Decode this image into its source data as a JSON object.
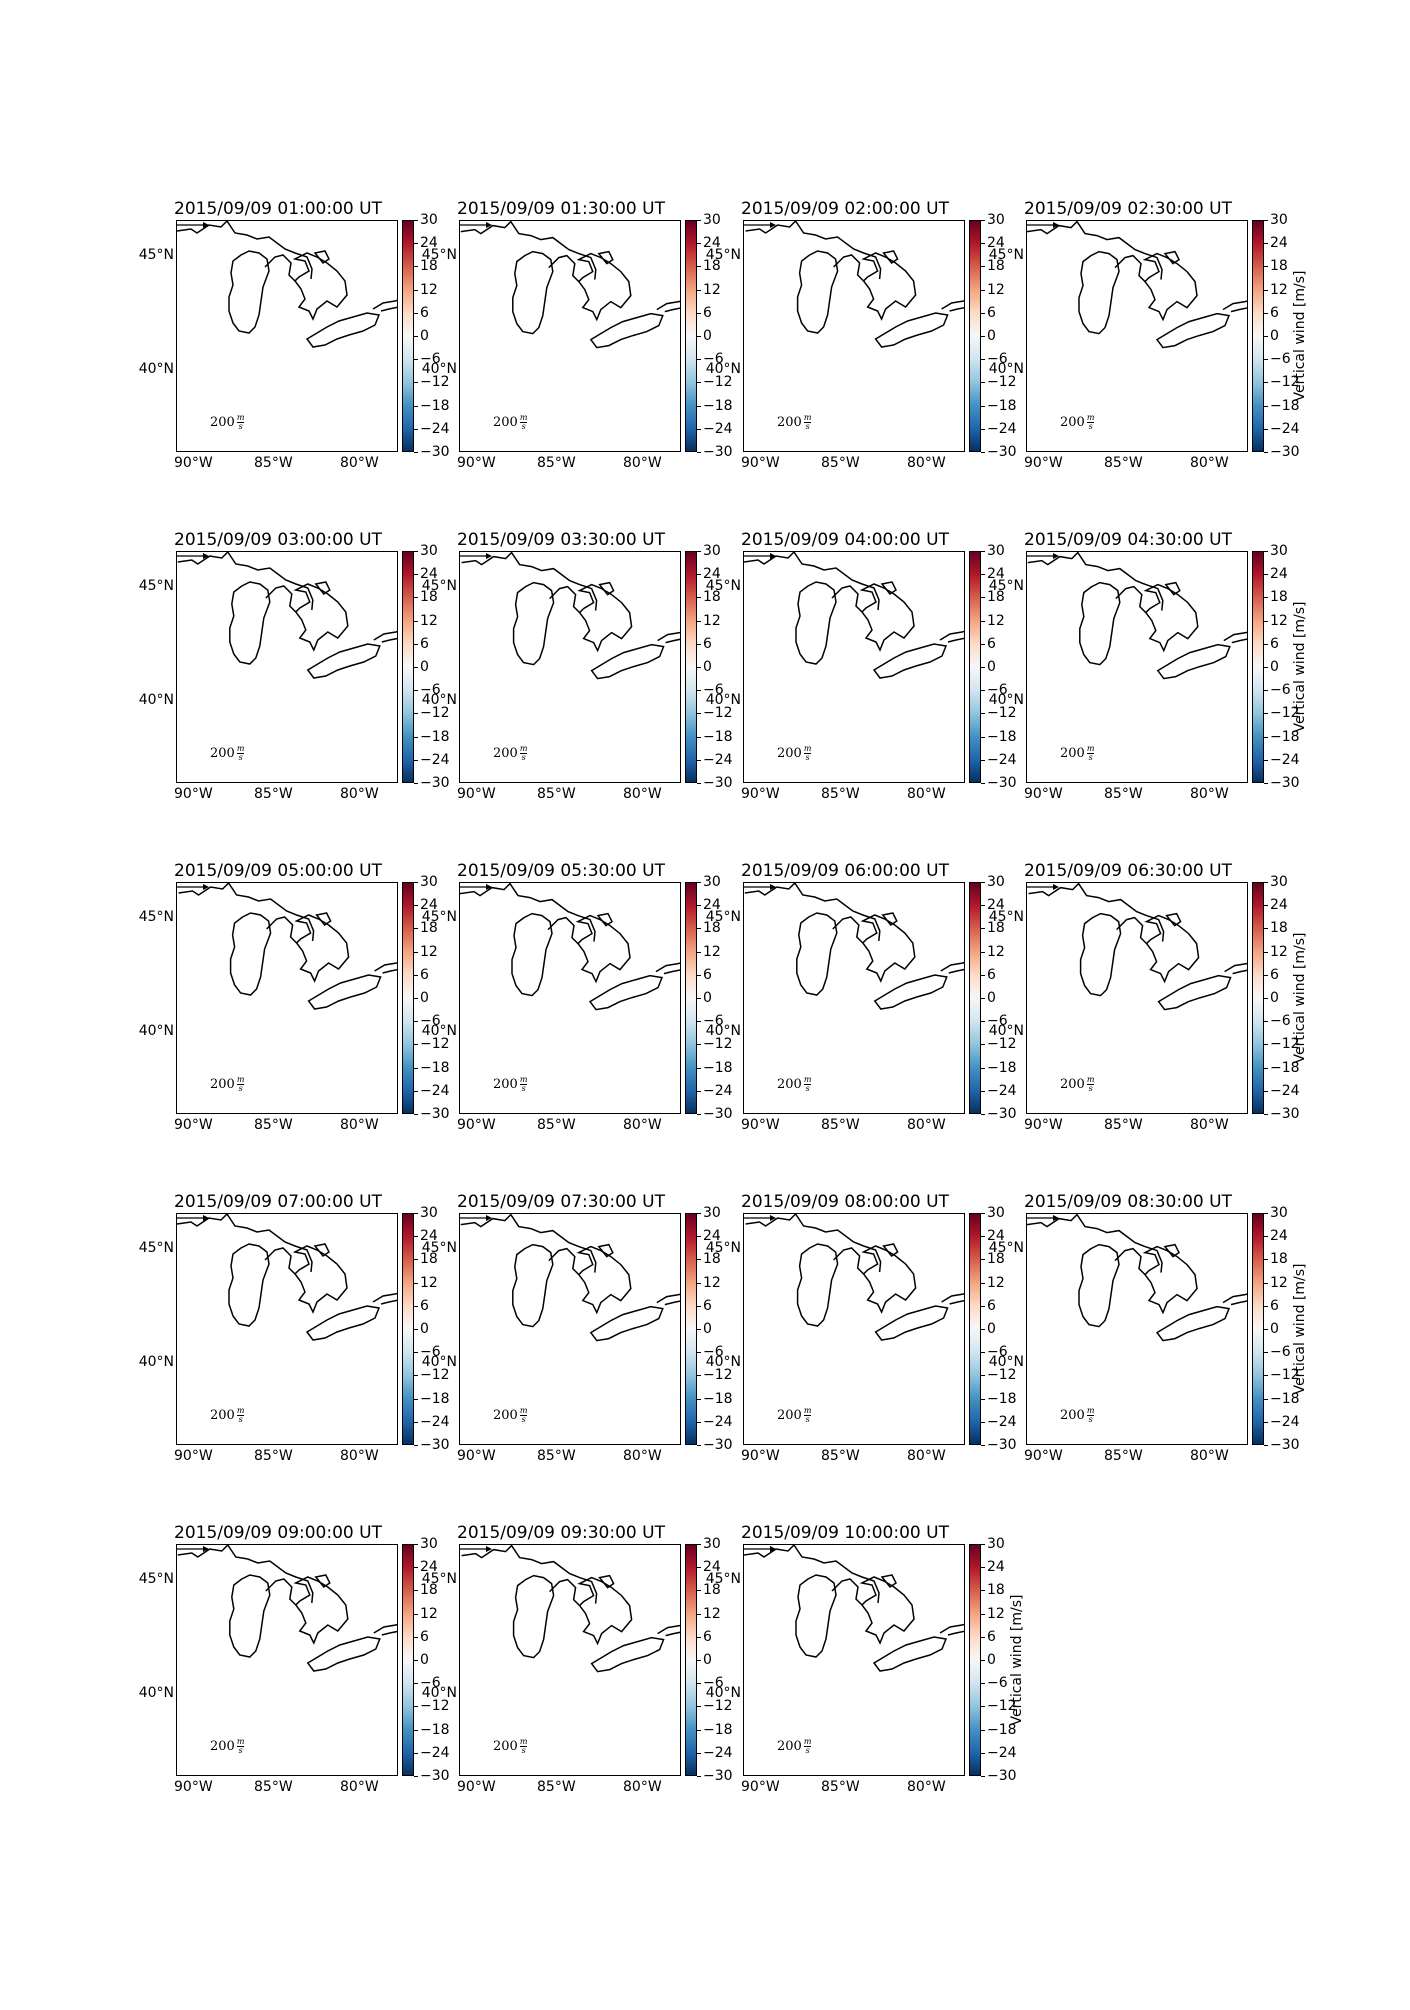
{
  "panels": [
    {
      "title": "2015/09/09 01:00:00 UT"
    },
    {
      "title": "2015/09/09 01:30:00 UT"
    },
    {
      "title": "2015/09/09 02:00:00 UT"
    },
    {
      "title": "2015/09/09 02:30:00 UT"
    },
    {
      "title": "2015/09/09 03:00:00 UT"
    },
    {
      "title": "2015/09/09 03:30:00 UT"
    },
    {
      "title": "2015/09/09 04:00:00 UT"
    },
    {
      "title": "2015/09/09 04:30:00 UT"
    },
    {
      "title": "2015/09/09 05:00:00 UT"
    },
    {
      "title": "2015/09/09 05:30:00 UT"
    },
    {
      "title": "2015/09/09 06:00:00 UT"
    },
    {
      "title": "2015/09/09 06:30:00 UT"
    },
    {
      "title": "2015/09/09 07:00:00 UT"
    },
    {
      "title": "2015/09/09 07:30:00 UT"
    },
    {
      "title": "2015/09/09 08:00:00 UT"
    },
    {
      "title": "2015/09/09 08:30:00 UT"
    },
    {
      "title": "2015/09/09 09:00:00 UT"
    },
    {
      "title": "2015/09/09 09:30:00 UT"
    },
    {
      "title": "2015/09/09 10:00:00 UT"
    }
  ],
  "map": {
    "lat_labels": [
      "45°N",
      "40°N"
    ],
    "lon_labels": [
      "90°W",
      "85°W",
      "80°W"
    ],
    "coastline_color": "#000000"
  },
  "quiver_key": {
    "value": "200",
    "unit_numerator": "m",
    "unit_denominator": "s"
  },
  "colorbar": {
    "label": "Vertical wind [m/s]",
    "ticks": [
      "30",
      "24",
      "18",
      "12",
      "6",
      "0",
      "−6",
      "−12",
      "−18",
      "−24",
      "−30"
    ],
    "range": [
      -30,
      30
    ],
    "colors": [
      "#053061",
      "#2166ac",
      "#4393c3",
      "#92c5de",
      "#d1e5f0",
      "#f7f7f7",
      "#fddbc7",
      "#f4a582",
      "#d6604d",
      "#b2182b",
      "#67001f"
    ]
  }
}
